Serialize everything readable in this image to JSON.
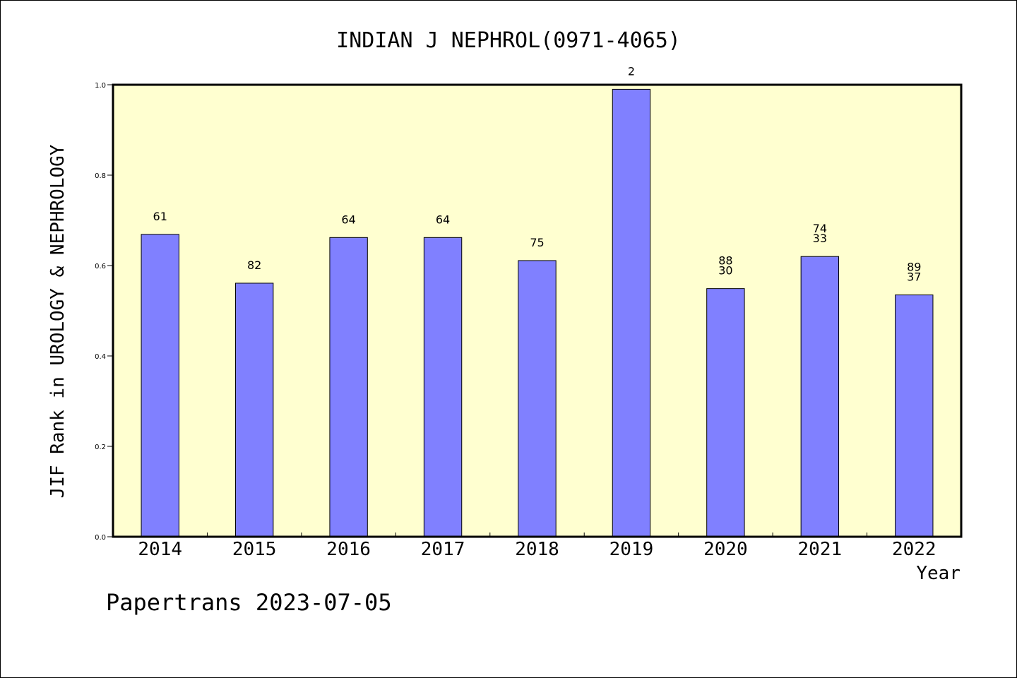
{
  "chart_data": {
    "type": "bar",
    "title": "INDIAN J NEPHROL(0971-4065)",
    "xlabel": "Year",
    "ylabel": "JIF Rank in UROLOGY & NEPHROLOGY",
    "ylim": [
      0,
      1.0
    ],
    "yticks": [
      "0.0",
      "0.2",
      "0.4",
      "0.6",
      "0.8",
      "1.0"
    ],
    "grid": false,
    "categories": [
      "2014",
      "2015",
      "2016",
      "2017",
      "2018",
      "2019",
      "2020",
      "2021",
      "2022"
    ],
    "values": [
      0.669,
      0.561,
      0.662,
      0.662,
      0.611,
      0.99,
      0.549,
      0.62,
      0.535
    ],
    "labels": [
      [
        "61"
      ],
      [
        "82"
      ],
      [
        "64"
      ],
      [
        "64"
      ],
      [
        "75"
      ],
      [
        "2"
      ],
      [
        "88",
        "30"
      ],
      [
        "74",
        "33"
      ],
      [
        "89",
        "37"
      ]
    ],
    "colors": {
      "plot_background": "#ffffd0",
      "bar_fill": "#8080ff",
      "bar_stroke": "#000000"
    }
  },
  "footer": {
    "credit": "Papertrans 2023-07-05"
  }
}
